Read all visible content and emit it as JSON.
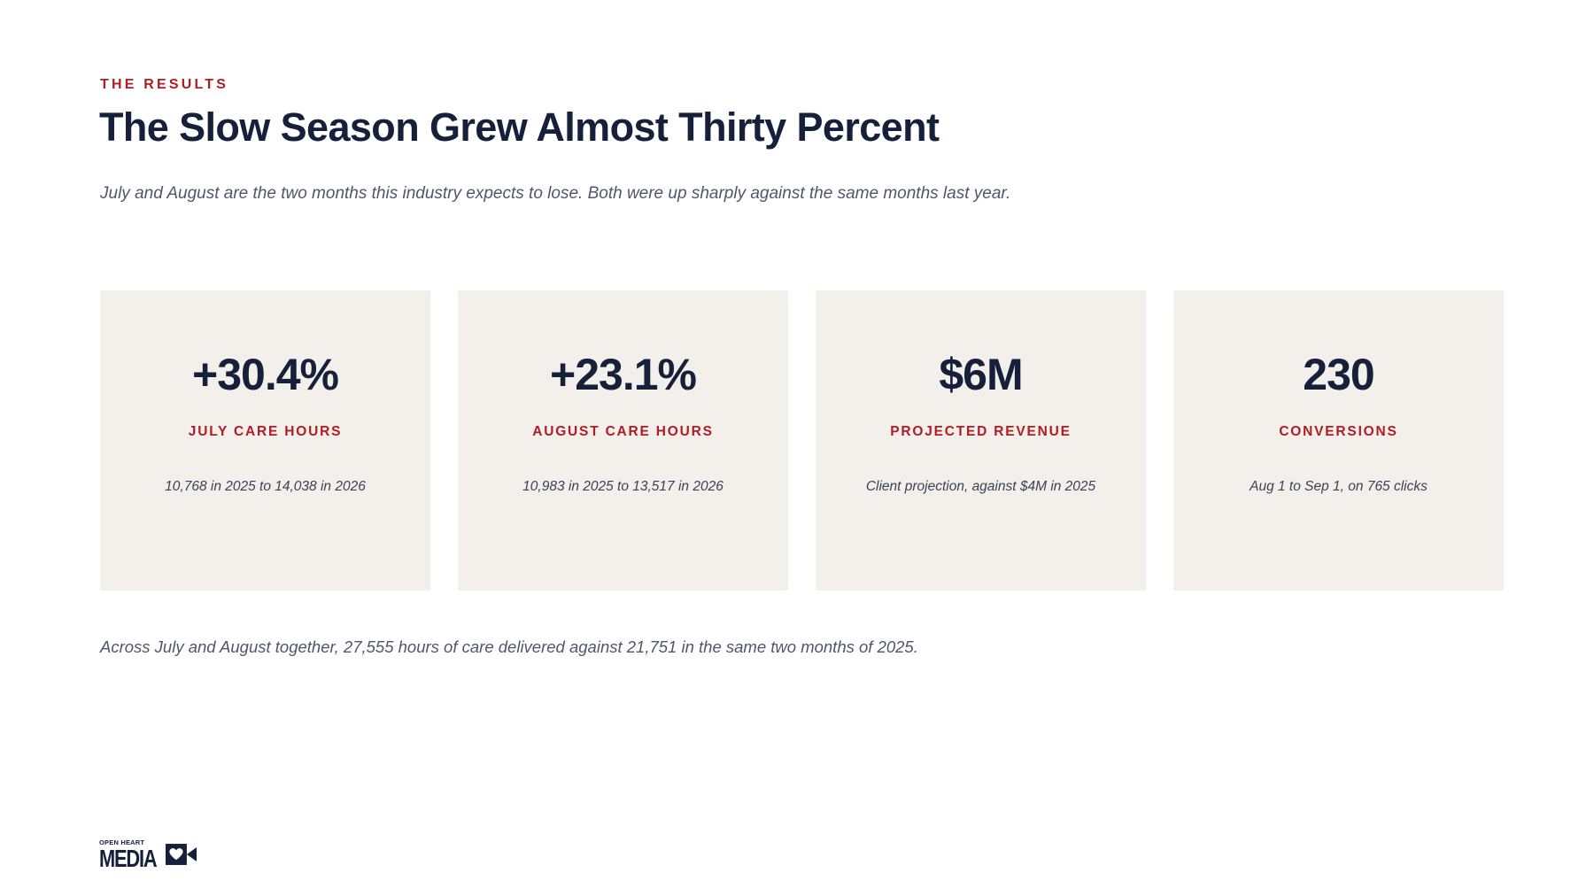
{
  "header": {
    "eyebrow": "THE RESULTS",
    "title": "The Slow Season Grew Almost Thirty Percent",
    "subtitle": "July and August are the two months this industry expects to lose. Both were up sharply against the same months last year."
  },
  "stats": [
    {
      "value": "+30.4%",
      "label": "JULY CARE HOURS",
      "note": "10,768 in 2025 to 14,038 in 2026"
    },
    {
      "value": "+23.1%",
      "label": "AUGUST CARE HOURS",
      "note": "10,983 in 2025 to 13,517 in 2026"
    },
    {
      "value": "$6M",
      "label": "PROJECTED REVENUE",
      "note": "Client projection, against $4M in 2025"
    },
    {
      "value": "230",
      "label": "CONVERSIONS",
      "note": "Aug 1 to Sep 1, on 765 clicks"
    }
  ],
  "footnote": "Across July and August together, 27,555 hours of care delivered against 21,751 in the same two months of 2025.",
  "logo": {
    "small_text": "OPEN HEART",
    "big_text": "MEDIA",
    "icon": "heart-camera-icon"
  },
  "colors": {
    "accent": "#b01c24",
    "navy": "#16203a",
    "card_bg": "#f3efea",
    "muted_text": "#4e5769"
  }
}
